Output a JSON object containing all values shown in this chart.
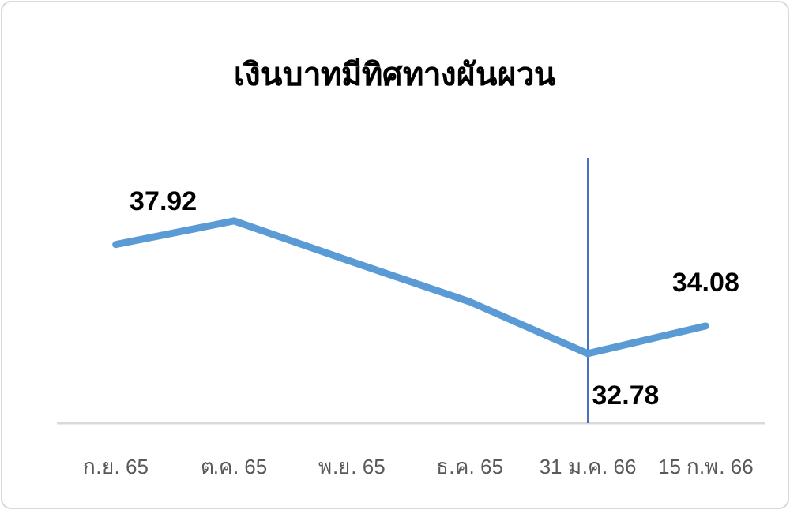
{
  "chart_data": {
    "type": "line",
    "title": "เงินบาทมีทิศทางผันผวน",
    "categories": [
      "ก.ย. 65",
      "ต.ค. 65",
      "พ.ย. 65",
      "ธ.ค. 65",
      "31 ม.ค. 66",
      "15 ก.พ. 66"
    ],
    "series": [
      {
        "color": "#5b9bd5",
        "values": [
          37.92,
          39.03,
          37.11,
          35.22,
          32.78,
          34.08
        ],
        "value_labels": [
          "37.92",
          null,
          null,
          null,
          "32.78",
          "34.08"
        ]
      }
    ],
    "ylim": [
      29.5,
      42
    ],
    "tick_labels": "x",
    "marker": "none",
    "line_style": "solid",
    "ref_lines": [
      {
        "axis": "x",
        "value": "31 ม.ค. 66",
        "color": "#4472c4"
      }
    ]
  }
}
